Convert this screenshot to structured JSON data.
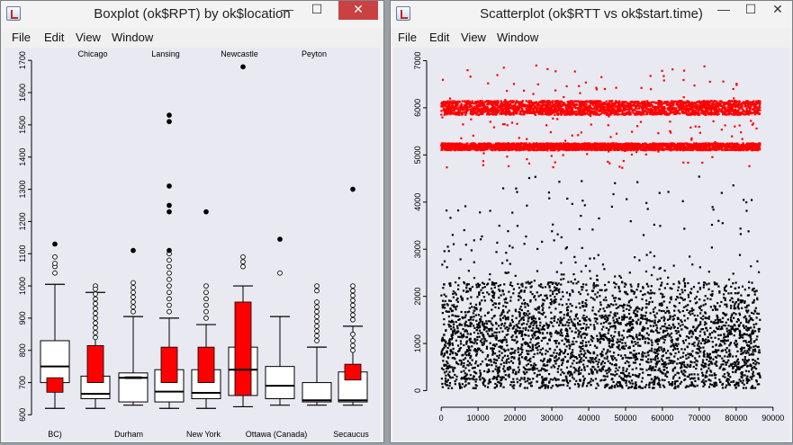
{
  "left_window": {
    "title": "Boxplot (ok$RPT) by ok$location",
    "menu": [
      "File",
      "Edit",
      "View",
      "Window"
    ],
    "controls": {
      "minimize": "—",
      "maximize": "☐",
      "close": "✕"
    }
  },
  "right_window": {
    "title": "Scatterplot (ok$RTT vs ok$start.time)",
    "menu": [
      "File",
      "Edit",
      "View",
      "Window"
    ],
    "controls": {
      "minimize": "—",
      "maximize": "☐",
      "close": "✕"
    }
  },
  "chart_data": [
    {
      "type": "boxplot",
      "y_ticks": [
        600,
        700,
        800,
        900,
        1000,
        1100,
        1200,
        1300,
        1400,
        1500,
        1600,
        1700
      ],
      "ylim": [
        590,
        1720
      ],
      "top_labels": [
        "Chicago",
        "Lansing",
        "Newcastle",
        "Peyton"
      ],
      "bottom_labels": [
        "BC)",
        "Durham",
        "New York",
        "Ottawa (Canada)",
        "Secaucus"
      ],
      "highlight_color": "#ff0000",
      "groups": [
        {
          "min": 620,
          "q1": 700,
          "median": 750,
          "q3": 830,
          "max": 1005,
          "outliers": [
            1040,
            1060,
            1070,
            1090,
            1130
          ],
          "highlight": [
            {
              "from": 670,
              "to": 715
            }
          ]
        },
        {
          "min": 620,
          "q1": 650,
          "median": 665,
          "q3": 720,
          "max": 980,
          "outliers": [
            1000,
            990,
            975,
            960,
            945,
            930,
            915,
            900,
            885,
            870,
            855,
            840
          ],
          "highlight": [
            {
              "from": 700,
              "to": 815
            }
          ]
        },
        {
          "min": 630,
          "q1": 640,
          "median": 715,
          "q3": 730,
          "max": 905,
          "outliers": [
            920,
            935,
            950,
            965,
            980,
            995,
            1010,
            1110
          ],
          "highlight": [
            {
              "from": 714,
              "to": 718
            }
          ]
        },
        {
          "min": 620,
          "q1": 640,
          "median": 672,
          "q3": 740,
          "max": 900,
          "outliers": [
            920,
            940,
            960,
            980,
            1000,
            1020,
            1040,
            1060,
            1080,
            1100,
            1110,
            1230,
            1250,
            1310,
            1510,
            1530
          ],
          "highlight": [
            {
              "from": 700,
              "to": 810
            }
          ]
        },
        {
          "min": 620,
          "q1": 650,
          "median": 668,
          "q3": 740,
          "max": 880,
          "outliers": [
            900,
            920,
            940,
            960,
            980,
            1000,
            1230
          ],
          "highlight": [
            {
              "from": 700,
              "to": 810
            }
          ]
        },
        {
          "min": 625,
          "q1": 660,
          "median": 740,
          "q3": 810,
          "max": 1000,
          "outliers": [
            1060,
            1075,
            1090,
            1680
          ],
          "highlight": [
            {
              "from": 660,
              "to": 950
            }
          ]
        },
        {
          "min": 630,
          "q1": 650,
          "median": 690,
          "q3": 750,
          "max": 905,
          "outliers": [
            1040,
            1145
          ],
          "highlight": []
        },
        {
          "min": 630,
          "q1": 640,
          "median": 645,
          "q3": 700,
          "max": 810,
          "outliers": [
            830,
            845,
            860,
            875,
            890,
            905,
            920,
            935,
            950,
            985,
            1000
          ],
          "highlight": []
        },
        {
          "min": 630,
          "q1": 640,
          "median": 645,
          "q3": 733,
          "max": 875,
          "outliers": [
            800,
            815,
            830,
            850,
            895,
            910,
            925,
            940,
            955,
            970,
            985,
            1000,
            1300
          ],
          "highlight": [
            {
              "from": 708,
              "to": 757
            }
          ]
        }
      ]
    },
    {
      "type": "scatter",
      "x_ticks": [
        0,
        10000,
        20000,
        30000,
        40000,
        50000,
        60000,
        70000,
        80000,
        90000
      ],
      "y_ticks": [
        0,
        1000,
        2000,
        3000,
        4000,
        5000,
        6000,
        7000
      ],
      "xlim": [
        -2000,
        92000
      ],
      "ylim": [
        -200,
        7200
      ],
      "series": [
        {
          "color": "#000000",
          "bands": [
            {
              "y": [
                50,
                1600
              ],
              "density": "dense"
            },
            {
              "y": [
                1600,
                2300
              ],
              "density": "medium"
            },
            {
              "y": [
                2300,
                4600
              ],
              "density": "sparse"
            }
          ]
        },
        {
          "color": "#ff0000",
          "bands": [
            {
              "y": [
                5100,
                5250
              ],
              "density": "dense"
            },
            {
              "y": [
                5850,
                6150
              ],
              "density": "dense"
            },
            {
              "y": [
                4700,
                6900
              ],
              "density": "sparse"
            }
          ]
        }
      ]
    }
  ]
}
